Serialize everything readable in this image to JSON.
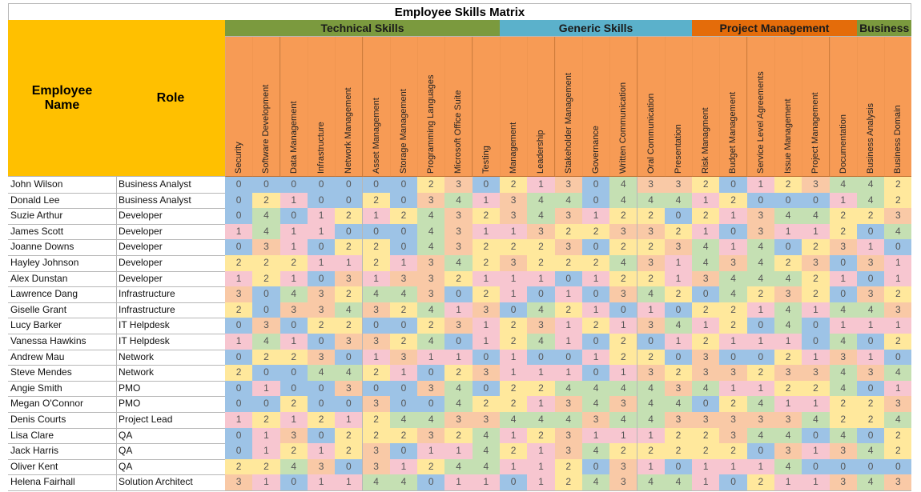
{
  "title": "Employee Skills Matrix",
  "headers": {
    "employee": "Employee Name",
    "role": "Role"
  },
  "score_colors": [
    "#9dc3e6",
    "#f7c6d0",
    "#ffe89c",
    "#f9c9a6",
    "#c5e0b3"
  ],
  "groups": [
    {
      "name": "Technical Skills",
      "color": "#7b9a3e",
      "skills": [
        "Security",
        "Software Development",
        "Data Management",
        "Infrastructure",
        "Network Management",
        "Asset Management",
        "Storage Management",
        "Programming Languages",
        "Microsoft Office Suite",
        "Testing"
      ]
    },
    {
      "name": "Generic Skills",
      "color": "#5bb1cb",
      "skills": [
        "Management",
        "Leadership",
        "Stakeholder Management",
        "Governance",
        "Written Communication",
        "Oral Communication",
        "Presentation"
      ]
    },
    {
      "name": "Project Management",
      "color": "#e46c0a",
      "skills": [
        "Risk Managment",
        "Budget Management",
        "Service Level Agreements",
        "Issue Management",
        "Project Management",
        "Documentation"
      ]
    },
    {
      "name": "Business",
      "color": "#7b9a3e",
      "skills": [
        "Business Analysis",
        "Business Domain"
      ]
    }
  ],
  "rows": [
    {
      "name": "John Wilson",
      "role": "Business Analyst",
      "scores": [
        0,
        0,
        0,
        0,
        0,
        0,
        0,
        2,
        3,
        0,
        2,
        1,
        3,
        0,
        4,
        3,
        3,
        2,
        0,
        1,
        2,
        3,
        4,
        4,
        2
      ]
    },
    {
      "name": "Donald Lee",
      "role": "Business Analyst",
      "scores": [
        0,
        2,
        1,
        0,
        0,
        2,
        0,
        3,
        4,
        1,
        3,
        4,
        4,
        0,
        4,
        4,
        4,
        1,
        2,
        0,
        0,
        0,
        1,
        4,
        2
      ]
    },
    {
      "name": "Suzie Arthur",
      "role": "Developer",
      "scores": [
        0,
        4,
        0,
        1,
        2,
        1,
        2,
        4,
        3,
        2,
        3,
        4,
        3,
        1,
        2,
        2,
        0,
        2,
        1,
        3,
        4,
        4,
        2,
        2,
        3
      ]
    },
    {
      "name": "James Scott",
      "role": "Developer",
      "scores": [
        1,
        4,
        1,
        1,
        0,
        0,
        0,
        4,
        3,
        1,
        1,
        3,
        2,
        2,
        3,
        3,
        2,
        1,
        0,
        3,
        1,
        1,
        2,
        0,
        4
      ]
    },
    {
      "name": "Joanne Downs",
      "role": "Developer",
      "scores": [
        0,
        3,
        1,
        0,
        2,
        2,
        0,
        4,
        3,
        2,
        2,
        2,
        3,
        0,
        2,
        2,
        3,
        4,
        1,
        4,
        0,
        2,
        3,
        1,
        0
      ]
    },
    {
      "name": "Hayley Johnson",
      "role": "Developer",
      "scores": [
        2,
        2,
        2,
        1,
        1,
        2,
        1,
        3,
        4,
        2,
        3,
        2,
        2,
        2,
        4,
        3,
        1,
        4,
        3,
        4,
        2,
        3,
        0,
        3,
        1
      ]
    },
    {
      "name": "Alex Dunstan",
      "role": "Developer",
      "scores": [
        1,
        2,
        1,
        0,
        3,
        1,
        3,
        3,
        2,
        1,
        1,
        1,
        0,
        1,
        2,
        2,
        1,
        3,
        4,
        4,
        4,
        2,
        1,
        0,
        1
      ]
    },
    {
      "name": "Lawrence Dang",
      "role": "Infrastructure",
      "scores": [
        3,
        0,
        4,
        3,
        2,
        4,
        4,
        3,
        0,
        2,
        1,
        0,
        1,
        0,
        3,
        4,
        2,
        0,
        4,
        2,
        3,
        2,
        0,
        3,
        2
      ]
    },
    {
      "name": "Giselle Grant",
      "role": "Infrastructure",
      "scores": [
        2,
        0,
        3,
        3,
        4,
        3,
        2,
        4,
        1,
        3,
        0,
        4,
        2,
        1,
        0,
        1,
        0,
        2,
        2,
        1,
        4,
        1,
        4,
        4,
        3
      ]
    },
    {
      "name": "Lucy Barker",
      "role": "IT Helpdesk",
      "scores": [
        0,
        3,
        0,
        2,
        2,
        0,
        0,
        2,
        3,
        1,
        2,
        3,
        1,
        2,
        1,
        3,
        4,
        1,
        2,
        0,
        4,
        0,
        1,
        1,
        1
      ]
    },
    {
      "name": "Vanessa Hawkins",
      "role": "IT Helpdesk",
      "scores": [
        1,
        4,
        1,
        0,
        3,
        3,
        2,
        4,
        0,
        1,
        2,
        4,
        1,
        0,
        2,
        0,
        1,
        2,
        1,
        1,
        1,
        0,
        4,
        0,
        2
      ]
    },
    {
      "name": "Andrew Mau",
      "role": "Network",
      "scores": [
        0,
        2,
        2,
        3,
        0,
        1,
        3,
        1,
        1,
        0,
        1,
        0,
        0,
        1,
        2,
        2,
        0,
        3,
        0,
        0,
        2,
        1,
        3,
        1,
        0
      ]
    },
    {
      "name": "Steve Mendes",
      "role": "Network",
      "scores": [
        2,
        0,
        0,
        4,
        4,
        2,
        1,
        0,
        2,
        3,
        1,
        1,
        1,
        0,
        1,
        3,
        2,
        3,
        3,
        2,
        3,
        3,
        4,
        3,
        4
      ]
    },
    {
      "name": "Angie Smith",
      "role": "PMO",
      "scores": [
        0,
        1,
        0,
        0,
        3,
        0,
        0,
        3,
        4,
        0,
        2,
        2,
        4,
        4,
        4,
        4,
        3,
        4,
        1,
        1,
        2,
        2,
        4,
        0,
        1
      ]
    },
    {
      "name": "Megan O'Connor",
      "role": "PMO",
      "scores": [
        0,
        0,
        2,
        0,
        0,
        3,
        0,
        0,
        4,
        2,
        2,
        1,
        3,
        4,
        3,
        4,
        4,
        0,
        2,
        4,
        1,
        1,
        2,
        2,
        3
      ]
    },
    {
      "name": "Denis Courts",
      "role": "Project Lead",
      "scores": [
        1,
        2,
        1,
        2,
        1,
        2,
        4,
        4,
        3,
        3,
        4,
        4,
        4,
        3,
        4,
        4,
        3,
        3,
        3,
        3,
        3,
        4,
        2,
        2,
        4
      ]
    },
    {
      "name": "Lisa Clare",
      "role": "QA",
      "scores": [
        0,
        1,
        3,
        0,
        2,
        2,
        2,
        3,
        2,
        4,
        1,
        2,
        3,
        1,
        1,
        1,
        2,
        2,
        3,
        4,
        4,
        0,
        4,
        0,
        2
      ]
    },
    {
      "name": "Jack Harris",
      "role": "QA",
      "scores": [
        0,
        1,
        2,
        1,
        2,
        3,
        0,
        1,
        1,
        4,
        2,
        1,
        3,
        4,
        2,
        2,
        2,
        2,
        2,
        0,
        3,
        1,
        3,
        4,
        2
      ]
    },
    {
      "name": "Oliver Kent",
      "role": "QA",
      "scores": [
        2,
        2,
        4,
        3,
        0,
        3,
        1,
        2,
        4,
        4,
        1,
        1,
        2,
        0,
        3,
        1,
        0,
        1,
        1,
        1,
        4,
        0,
        0,
        0,
        0
      ]
    },
    {
      "name": "Helena Fairhall",
      "role": "Solution Architect",
      "scores": [
        3,
        1,
        0,
        1,
        1,
        4,
        4,
        0,
        1,
        1,
        0,
        1,
        2,
        4,
        3,
        4,
        4,
        1,
        0,
        2,
        1,
        1,
        3,
        4,
        3
      ]
    }
  ]
}
